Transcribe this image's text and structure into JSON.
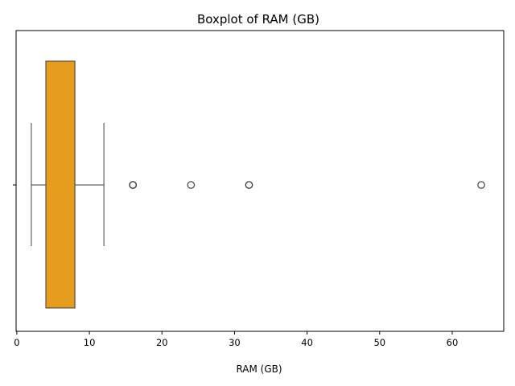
{
  "chart_data": {
    "type": "boxplot",
    "orientation": "horizontal",
    "title": "Boxplot of RAM (GB)",
    "xlabel": "RAM (GB)",
    "ylabel": "",
    "xlim": [
      -0.1,
      67.1
    ],
    "x_ticks": [
      0,
      10,
      20,
      30,
      40,
      50,
      60
    ],
    "x_tick_labels": [
      "0",
      "10",
      "20",
      "30",
      "40",
      "50",
      "60"
    ],
    "y_ticks": [
      ""
    ],
    "grid": false,
    "legend": "none",
    "box": {
      "whisker_low": 2,
      "q1": 4,
      "median": 8,
      "q3": 8,
      "whisker_high": 12,
      "outliers": [
        16,
        16,
        16,
        24,
        32,
        32,
        64
      ]
    },
    "colors": {
      "box_fill": "#E69C1C",
      "box_edge": "#3f3f3f",
      "outlier_edge": "#3f3f3f"
    }
  }
}
